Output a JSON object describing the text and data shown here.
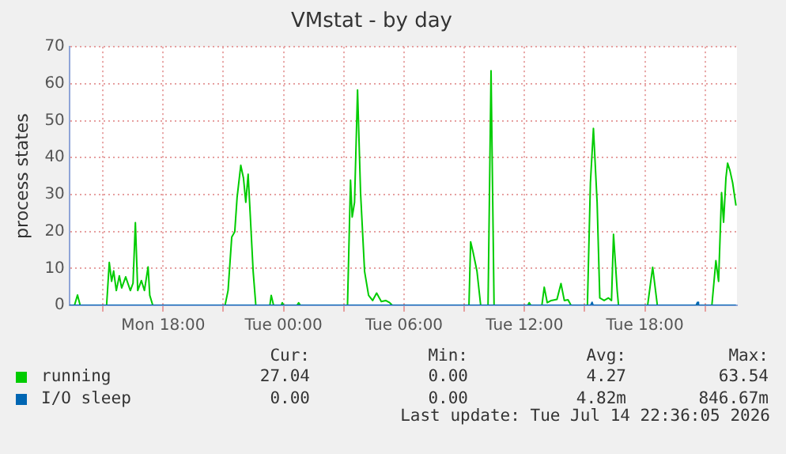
{
  "chart_data": {
    "type": "line",
    "title": "VMstat - by day",
    "ylabel": "process states",
    "xlim": [
      "2026-07-13T13:20",
      "2026-07-14T22:35"
    ],
    "xticks": [
      {
        "value": "2026-07-13T15:00",
        "label": null
      },
      {
        "value": "2026-07-13T18:00",
        "label": "Mon 18:00"
      },
      {
        "value": "2026-07-13T21:00",
        "label": null
      },
      {
        "value": "2026-07-14T00:00",
        "label": "Tue 00:00"
      },
      {
        "value": "2026-07-14T03:00",
        "label": null
      },
      {
        "value": "2026-07-14T06:00",
        "label": "Tue 06:00"
      },
      {
        "value": "2026-07-14T09:00",
        "label": null
      },
      {
        "value": "2026-07-14T12:00",
        "label": "Tue 12:00"
      },
      {
        "value": "2026-07-14T15:00",
        "label": null
      },
      {
        "value": "2026-07-14T18:00",
        "label": "Tue 18:00"
      },
      {
        "value": "2026-07-14T21:00",
        "label": null
      }
    ],
    "ylim": [
      0,
      70
    ],
    "yticks": [
      0,
      10,
      20,
      30,
      40,
      50,
      60,
      70
    ],
    "grid": true,
    "legend": "bottom left",
    "marker": "none",
    "line_style": "solid",
    "series": [
      {
        "name": "running",
        "color": "#00cc00",
        "x": [
          "2026-07-13T13:20",
          "2026-07-13T13:35",
          "2026-07-13T13:44",
          "2026-07-13T13:52",
          "2026-07-13T15:11",
          "2026-07-13T15:19",
          "2026-07-13T15:26",
          "2026-07-13T15:32",
          "2026-07-13T15:40",
          "2026-07-13T15:49",
          "2026-07-13T15:56",
          "2026-07-13T16:08",
          "2026-07-13T16:22",
          "2026-07-13T16:30",
          "2026-07-13T16:37",
          "2026-07-13T16:44",
          "2026-07-13T16:55",
          "2026-07-13T17:04",
          "2026-07-13T17:15",
          "2026-07-13T17:20",
          "2026-07-13T17:29",
          "2026-07-13T21:05",
          "2026-07-13T21:14",
          "2026-07-13T21:25",
          "2026-07-13T21:34",
          "2026-07-13T21:41",
          "2026-07-13T21:52",
          "2026-07-13T22:00",
          "2026-07-13T22:07",
          "2026-07-13T22:14",
          "2026-07-13T22:20",
          "2026-07-13T22:29",
          "2026-07-13T22:37",
          "2026-07-13T23:19",
          "2026-07-13T23:23",
          "2026-07-13T23:30",
          "2026-07-13T23:53",
          "2026-07-13T23:56",
          "2026-07-14T00:00",
          "2026-07-14T00:40",
          "2026-07-14T00:45",
          "2026-07-14T00:50",
          "2026-07-14T03:11",
          "2026-07-14T03:20",
          "2026-07-14T03:25",
          "2026-07-14T03:32",
          "2026-07-14T03:41",
          "2026-07-14T03:50",
          "2026-07-14T04:02",
          "2026-07-14T04:14",
          "2026-07-14T04:26",
          "2026-07-14T04:38",
          "2026-07-14T04:52",
          "2026-07-14T05:05",
          "2026-07-14T05:17",
          "2026-07-14T05:25",
          "2026-07-14T09:14",
          "2026-07-14T09:19",
          "2026-07-14T09:26",
          "2026-07-14T09:38",
          "2026-07-14T09:49",
          "2026-07-14T10:11",
          "2026-07-14T10:20",
          "2026-07-14T10:29",
          "2026-07-14T12:10",
          "2026-07-14T12:14",
          "2026-07-14T12:19",
          "2026-07-14T12:52",
          "2026-07-14T12:59",
          "2026-07-14T13:08",
          "2026-07-14T13:20",
          "2026-07-14T13:37",
          "2026-07-14T13:49",
          "2026-07-14T13:59",
          "2026-07-14T14:10",
          "2026-07-14T14:19",
          "2026-07-14T15:08",
          "2026-07-14T15:17",
          "2026-07-14T15:26",
          "2026-07-14T15:37",
          "2026-07-14T15:45",
          "2026-07-14T15:58",
          "2026-07-14T16:11",
          "2026-07-14T16:20",
          "2026-07-14T16:26",
          "2026-07-14T16:37",
          "2026-07-14T16:41",
          "2026-07-14T18:08",
          "2026-07-14T18:23",
          "2026-07-14T18:37",
          "2026-07-14T21:20",
          "2026-07-14T21:32",
          "2026-07-14T21:40",
          "2026-07-14T21:49",
          "2026-07-14T21:55",
          "2026-07-14T22:02",
          "2026-07-14T22:07",
          "2026-07-14T22:14",
          "2026-07-14T22:22",
          "2026-07-14T22:32"
        ],
        "values": [
          0,
          0,
          2.8,
          0,
          0,
          11.6,
          6.5,
          9.3,
          4,
          8,
          4.7,
          7.7,
          4,
          6,
          22.4,
          4,
          6.7,
          4,
          10.4,
          2.7,
          0,
          0,
          4,
          18.5,
          19.9,
          29.2,
          37.9,
          34.5,
          27.9,
          35.5,
          25,
          9.2,
          0,
          0,
          2.7,
          0,
          0,
          0.7,
          0,
          0,
          0.7,
          0,
          0,
          33.9,
          23.9,
          27.9,
          58.3,
          30.5,
          9.2,
          2.7,
          1.3,
          3.3,
          1,
          1.3,
          0.7,
          0,
          0,
          17.2,
          14.5,
          9.2,
          0,
          0,
          63.5,
          0,
          0,
          0.7,
          0,
          0,
          4.9,
          0.7,
          1.3,
          1.6,
          5.9,
          1.3,
          1.5,
          0,
          0,
          33.2,
          47.9,
          27.9,
          2,
          1.3,
          2,
          1.3,
          19.2,
          4,
          0,
          0,
          10.3,
          0,
          0,
          12.1,
          6.5,
          30.5,
          22.5,
          34.5,
          38.5,
          36.5,
          33.2,
          27
        ]
      },
      {
        "name": "I/O sleep",
        "color": "#0066b3",
        "x": [
          "2026-07-13T13:20",
          "2026-07-14T15:18",
          "2026-07-14T15:22",
          "2026-07-14T15:25",
          "2026-07-14T20:33",
          "2026-07-14T20:37",
          "2026-07-14T20:40",
          "2026-07-14T22:32"
        ],
        "values": [
          0,
          0,
          0.8,
          0,
          0,
          0.8,
          0,
          0
        ]
      }
    ],
    "annotations": [
      "Cur:",
      "Min:",
      "Avg:",
      "Max:",
      "27.04",
      "0.00",
      "4.27",
      "63.54",
      "0.00",
      "0.00",
      "4.82m",
      "846.67m",
      "Last update: Tue Jul 14 22:36:05 2026"
    ]
  }
}
